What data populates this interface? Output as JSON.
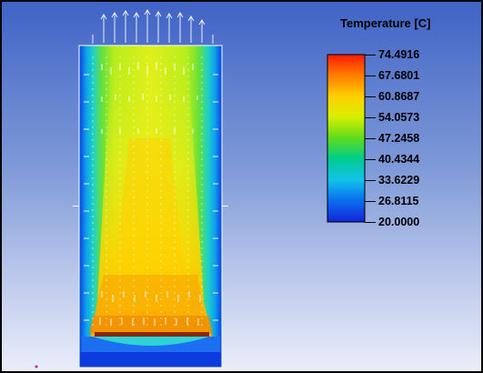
{
  "legend": {
    "title": "Temperature [C]",
    "values": [
      "74.4916",
      "67.6801",
      "60.8687",
      "54.0573",
      "47.2458",
      "40.4344",
      "33.6229",
      "26.8115",
      "20.0000"
    ],
    "colors": [
      "#ff2a00",
      "#ff8a00",
      "#ffd800",
      "#ccf000",
      "#4fd81d",
      "#00c9a8",
      "#17c4e8",
      "#0a76ee",
      "#0f2cd9"
    ]
  }
}
